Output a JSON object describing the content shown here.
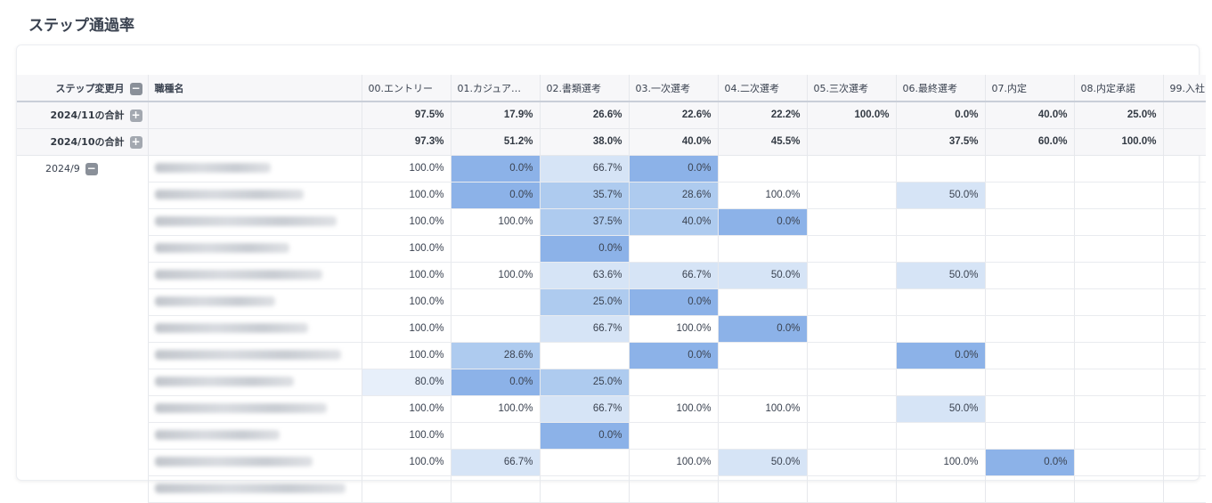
{
  "page": {
    "title": "ステップ通過率"
  },
  "header": {
    "month_label": "ステップ変更月",
    "job_label": "職種名",
    "steps": [
      "00.エントリー",
      "01.カジュア…",
      "02.書類選考",
      "03.一次選考",
      "04.二次選考",
      "05.三次選考",
      "06.最終選考",
      "07.内定",
      "08.内定承諾",
      "99.入社"
    ]
  },
  "totals": [
    {
      "label": "2024/11の合計",
      "values": [
        "97.5%",
        "17.9%",
        "26.6%",
        "22.6%",
        "22.2%",
        "100.0%",
        "0.0%",
        "40.0%",
        "25.0%",
        ""
      ]
    },
    {
      "label": "2024/10の合計",
      "values": [
        "97.3%",
        "51.2%",
        "38.0%",
        "40.0%",
        "45.5%",
        "",
        "37.5%",
        "60.0%",
        "100.0%",
        ""
      ]
    }
  ],
  "month_group": {
    "label": "2024/9"
  },
  "rows": [
    {
      "values": [
        "100.0%",
        "0.0%",
        "66.7%",
        "0.0%",
        "",
        "",
        "",
        "",
        "",
        ""
      ]
    },
    {
      "values": [
        "100.0%",
        "0.0%",
        "35.7%",
        "28.6%",
        "100.0%",
        "",
        "50.0%",
        "",
        "",
        ""
      ]
    },
    {
      "values": [
        "100.0%",
        "100.0%",
        "37.5%",
        "40.0%",
        "0.0%",
        "",
        "",
        "",
        "",
        ""
      ]
    },
    {
      "values": [
        "100.0%",
        "",
        "0.0%",
        "",
        "",
        "",
        "",
        "",
        "",
        ""
      ]
    },
    {
      "values": [
        "100.0%",
        "100.0%",
        "63.6%",
        "66.7%",
        "50.0%",
        "",
        "50.0%",
        "",
        "",
        ""
      ]
    },
    {
      "values": [
        "100.0%",
        "",
        "25.0%",
        "0.0%",
        "",
        "",
        "",
        "",
        "",
        ""
      ]
    },
    {
      "values": [
        "100.0%",
        "",
        "66.7%",
        "100.0%",
        "0.0%",
        "",
        "",
        "",
        "",
        ""
      ]
    },
    {
      "values": [
        "100.0%",
        "28.6%",
        "",
        "0.0%",
        "",
        "",
        "0.0%",
        "",
        "",
        ""
      ]
    },
    {
      "values": [
        "80.0%",
        "0.0%",
        "25.0%",
        "",
        "",
        "",
        "",
        "",
        "",
        ""
      ]
    },
    {
      "values": [
        "100.0%",
        "100.0%",
        "66.7%",
        "100.0%",
        "100.0%",
        "",
        "50.0%",
        "",
        "",
        ""
      ]
    },
    {
      "values": [
        "100.0%",
        "",
        "0.0%",
        "",
        "",
        "",
        "",
        "",
        "",
        ""
      ]
    },
    {
      "values": [
        "100.0%",
        "66.7%",
        "",
        "100.0%",
        "50.0%",
        "",
        "100.0%",
        "0.0%",
        "",
        ""
      ]
    },
    {
      "values": [
        "",
        "",
        "",
        "",
        "",
        "",
        "",
        "",
        "",
        ""
      ]
    }
  ],
  "colors": {
    "shade_strong": "#8cb2e8",
    "shade_mid": "#aecbef",
    "shade_light": "#d6e4f6",
    "shade_faint": "#e7effa"
  },
  "icons": {
    "collapse": "minus-box-icon",
    "expand": "plus-box-icon"
  },
  "toggle_glyphs": {
    "minus": "−",
    "plus": "+"
  }
}
